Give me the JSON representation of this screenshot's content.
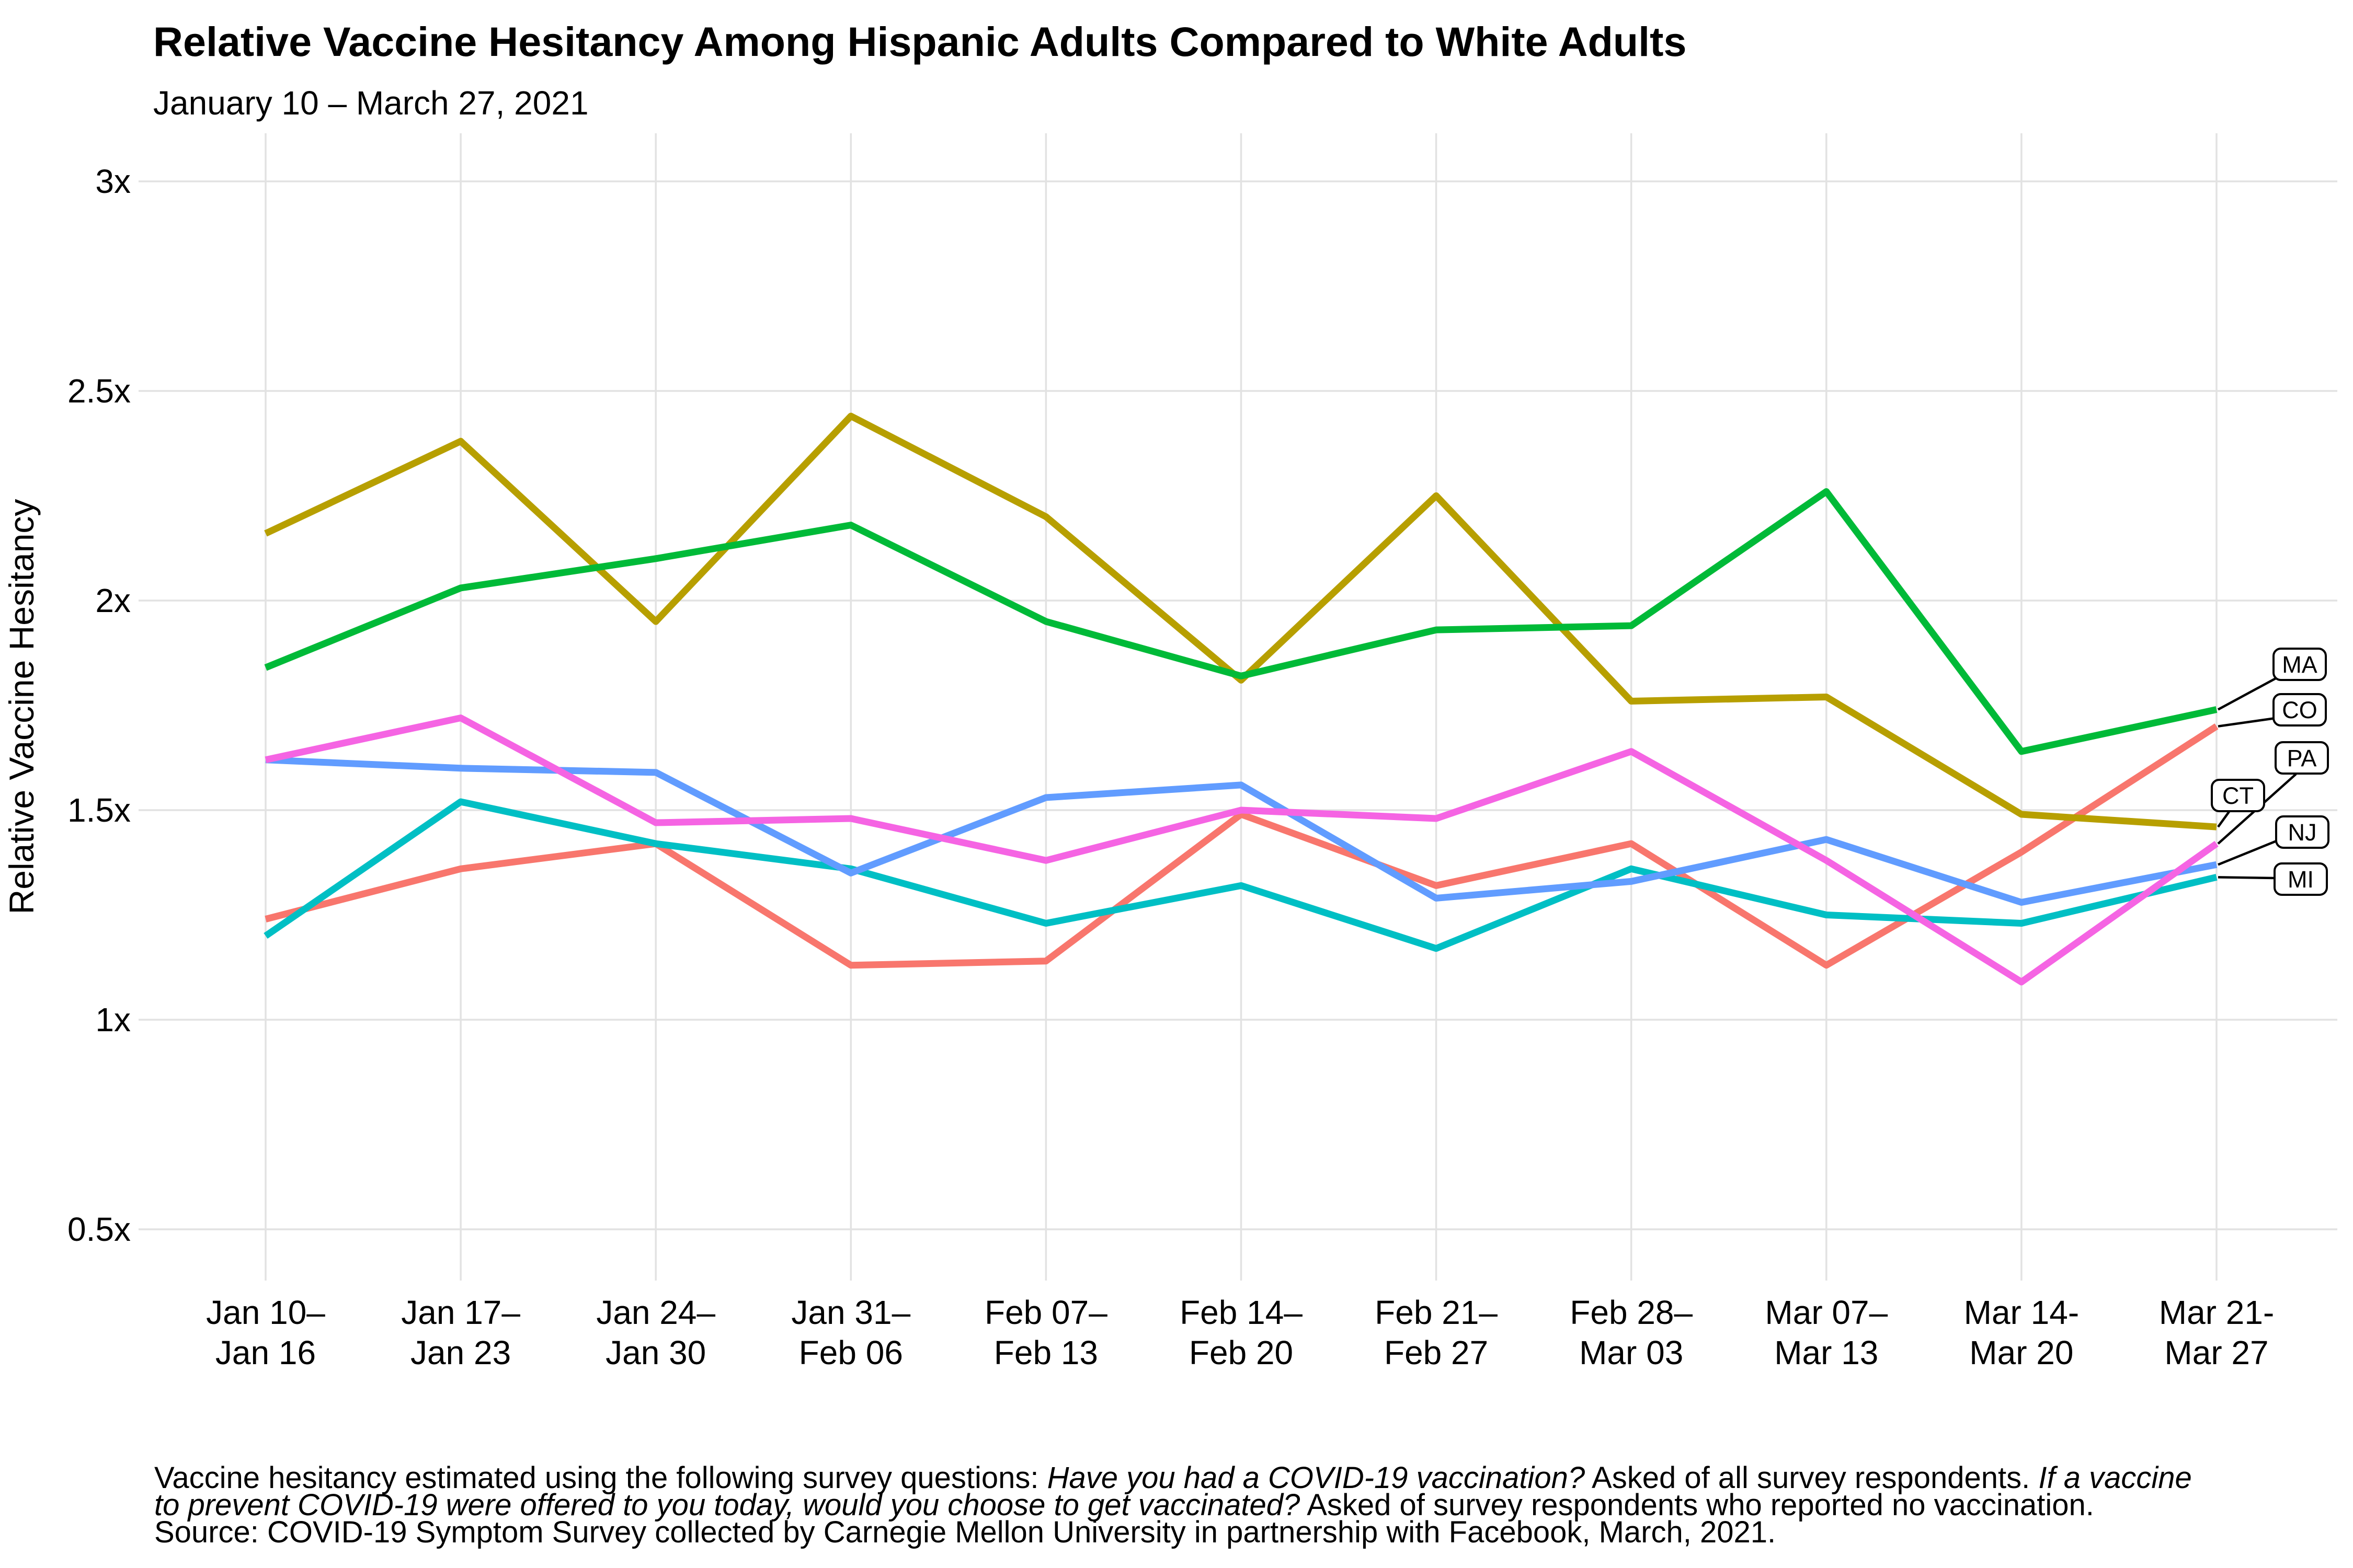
{
  "header": {
    "title": "Relative Vaccine Hesitancy Among Hispanic Adults Compared to White Adults",
    "subtitle": "January 10 – March 27, 2021"
  },
  "y_axis": {
    "title": "Relative Vaccine Hesitancy",
    "tick_labels": [
      "3x",
      "2.5x",
      "2x",
      "1.5x",
      "1x",
      "0.5x"
    ],
    "tick_values": [
      3,
      2.5,
      2,
      1.5,
      1,
      0.5
    ]
  },
  "x_axis": {
    "tick_labels": [
      {
        "line1": "Jan 10–",
        "line2": "Jan 16"
      },
      {
        "line1": "Jan 17–",
        "line2": "Jan 23"
      },
      {
        "line1": "Jan 24–",
        "line2": "Jan 30"
      },
      {
        "line1": "Jan 31–",
        "line2": "Feb 06"
      },
      {
        "line1": "Feb 07–",
        "line2": "Feb 13"
      },
      {
        "line1": "Feb 14–",
        "line2": "Feb 20"
      },
      {
        "line1": "Feb 21–",
        "line2": "Feb 27"
      },
      {
        "line1": "Feb 28–",
        "line2": "Mar 03"
      },
      {
        "line1": "Mar 07–",
        "line2": "Mar 13"
      },
      {
        "line1": "Mar 14-",
        "line2": "Mar 20"
      },
      {
        "line1": "Mar 21-",
        "line2": "Mar 27"
      }
    ]
  },
  "chart_data": {
    "type": "line",
    "title": "Relative Vaccine Hesitancy Among Hispanic Adults Compared to White Adults",
    "subtitle": "January 10 – March 27, 2021",
    "xlabel": "",
    "ylabel": "Relative Vaccine Hesitancy",
    "ylim": [
      0.5,
      3
    ],
    "grid": true,
    "legend_position": "right-end-labels",
    "categories": [
      "Jan 10–Jan 16",
      "Jan 17–Jan 23",
      "Jan 24–Jan 30",
      "Jan 31–Feb 06",
      "Feb 07–Feb 13",
      "Feb 14–Feb 20",
      "Feb 21–Feb 27",
      "Feb 28–Mar 03",
      "Mar 07–Mar 13",
      "Mar 14-Mar 20",
      "Mar 21-Mar 27"
    ],
    "series": [
      {
        "name": "CO",
        "color": "#F8766D",
        "values": [
          1.24,
          1.36,
          1.42,
          1.13,
          1.14,
          1.49,
          1.32,
          1.42,
          1.13,
          1.4,
          1.7
        ]
      },
      {
        "name": "CT",
        "color": "#B79F00",
        "values": [
          2.16,
          2.38,
          1.95,
          2.44,
          2.2,
          1.81,
          2.25,
          1.76,
          1.77,
          1.49,
          1.46
        ]
      },
      {
        "name": "MA",
        "color": "#00BA38",
        "values": [
          1.84,
          2.03,
          2.1,
          2.18,
          1.95,
          1.82,
          1.93,
          1.94,
          2.26,
          1.64,
          1.74
        ]
      },
      {
        "name": "MI",
        "color": "#00BFC4",
        "values": [
          1.2,
          1.52,
          1.42,
          1.36,
          1.23,
          1.32,
          1.17,
          1.36,
          1.25,
          1.23,
          1.34
        ]
      },
      {
        "name": "NJ",
        "color": "#619CFF",
        "values": [
          1.62,
          1.6,
          1.59,
          1.35,
          1.53,
          1.56,
          1.29,
          1.33,
          1.43,
          1.28,
          1.37
        ]
      },
      {
        "name": "PA",
        "color": "#F564E3",
        "values": [
          1.62,
          1.72,
          1.47,
          1.48,
          1.38,
          1.5,
          1.48,
          1.64,
          1.38,
          1.09,
          1.42
        ]
      }
    ],
    "end_labels": [
      "MA",
      "CO",
      "PA",
      "CT",
      "NJ",
      "MI"
    ]
  },
  "caption": {
    "lines": [
      [
        {
          "text": "Vaccine hesitancy estimated using the following survey questions: ",
          "italic": false
        },
        {
          "text": "Have you had a COVID-19 vaccination?",
          "italic": true
        },
        {
          "text": " Asked of all survey respondents. ",
          "italic": false
        },
        {
          "text": "If a vaccine",
          "italic": true
        }
      ],
      [
        {
          "text": "to prevent COVID-19 were offered to you today, would you choose to get vaccinated?",
          "italic": true
        },
        {
          "text": " Asked of survey respondents who reported no vaccination.",
          "italic": false
        }
      ],
      [
        {
          "text": "Source: COVID-19 Symptom Survey collected by Carnegie Mellon University in partnership with Facebook, March, 2021.",
          "italic": false
        }
      ]
    ]
  },
  "style_colors": {
    "gridline": "#E2E2E2",
    "text": "#000000",
    "label_box_fill": "#FFFFFF",
    "label_box_border": "#000000"
  }
}
